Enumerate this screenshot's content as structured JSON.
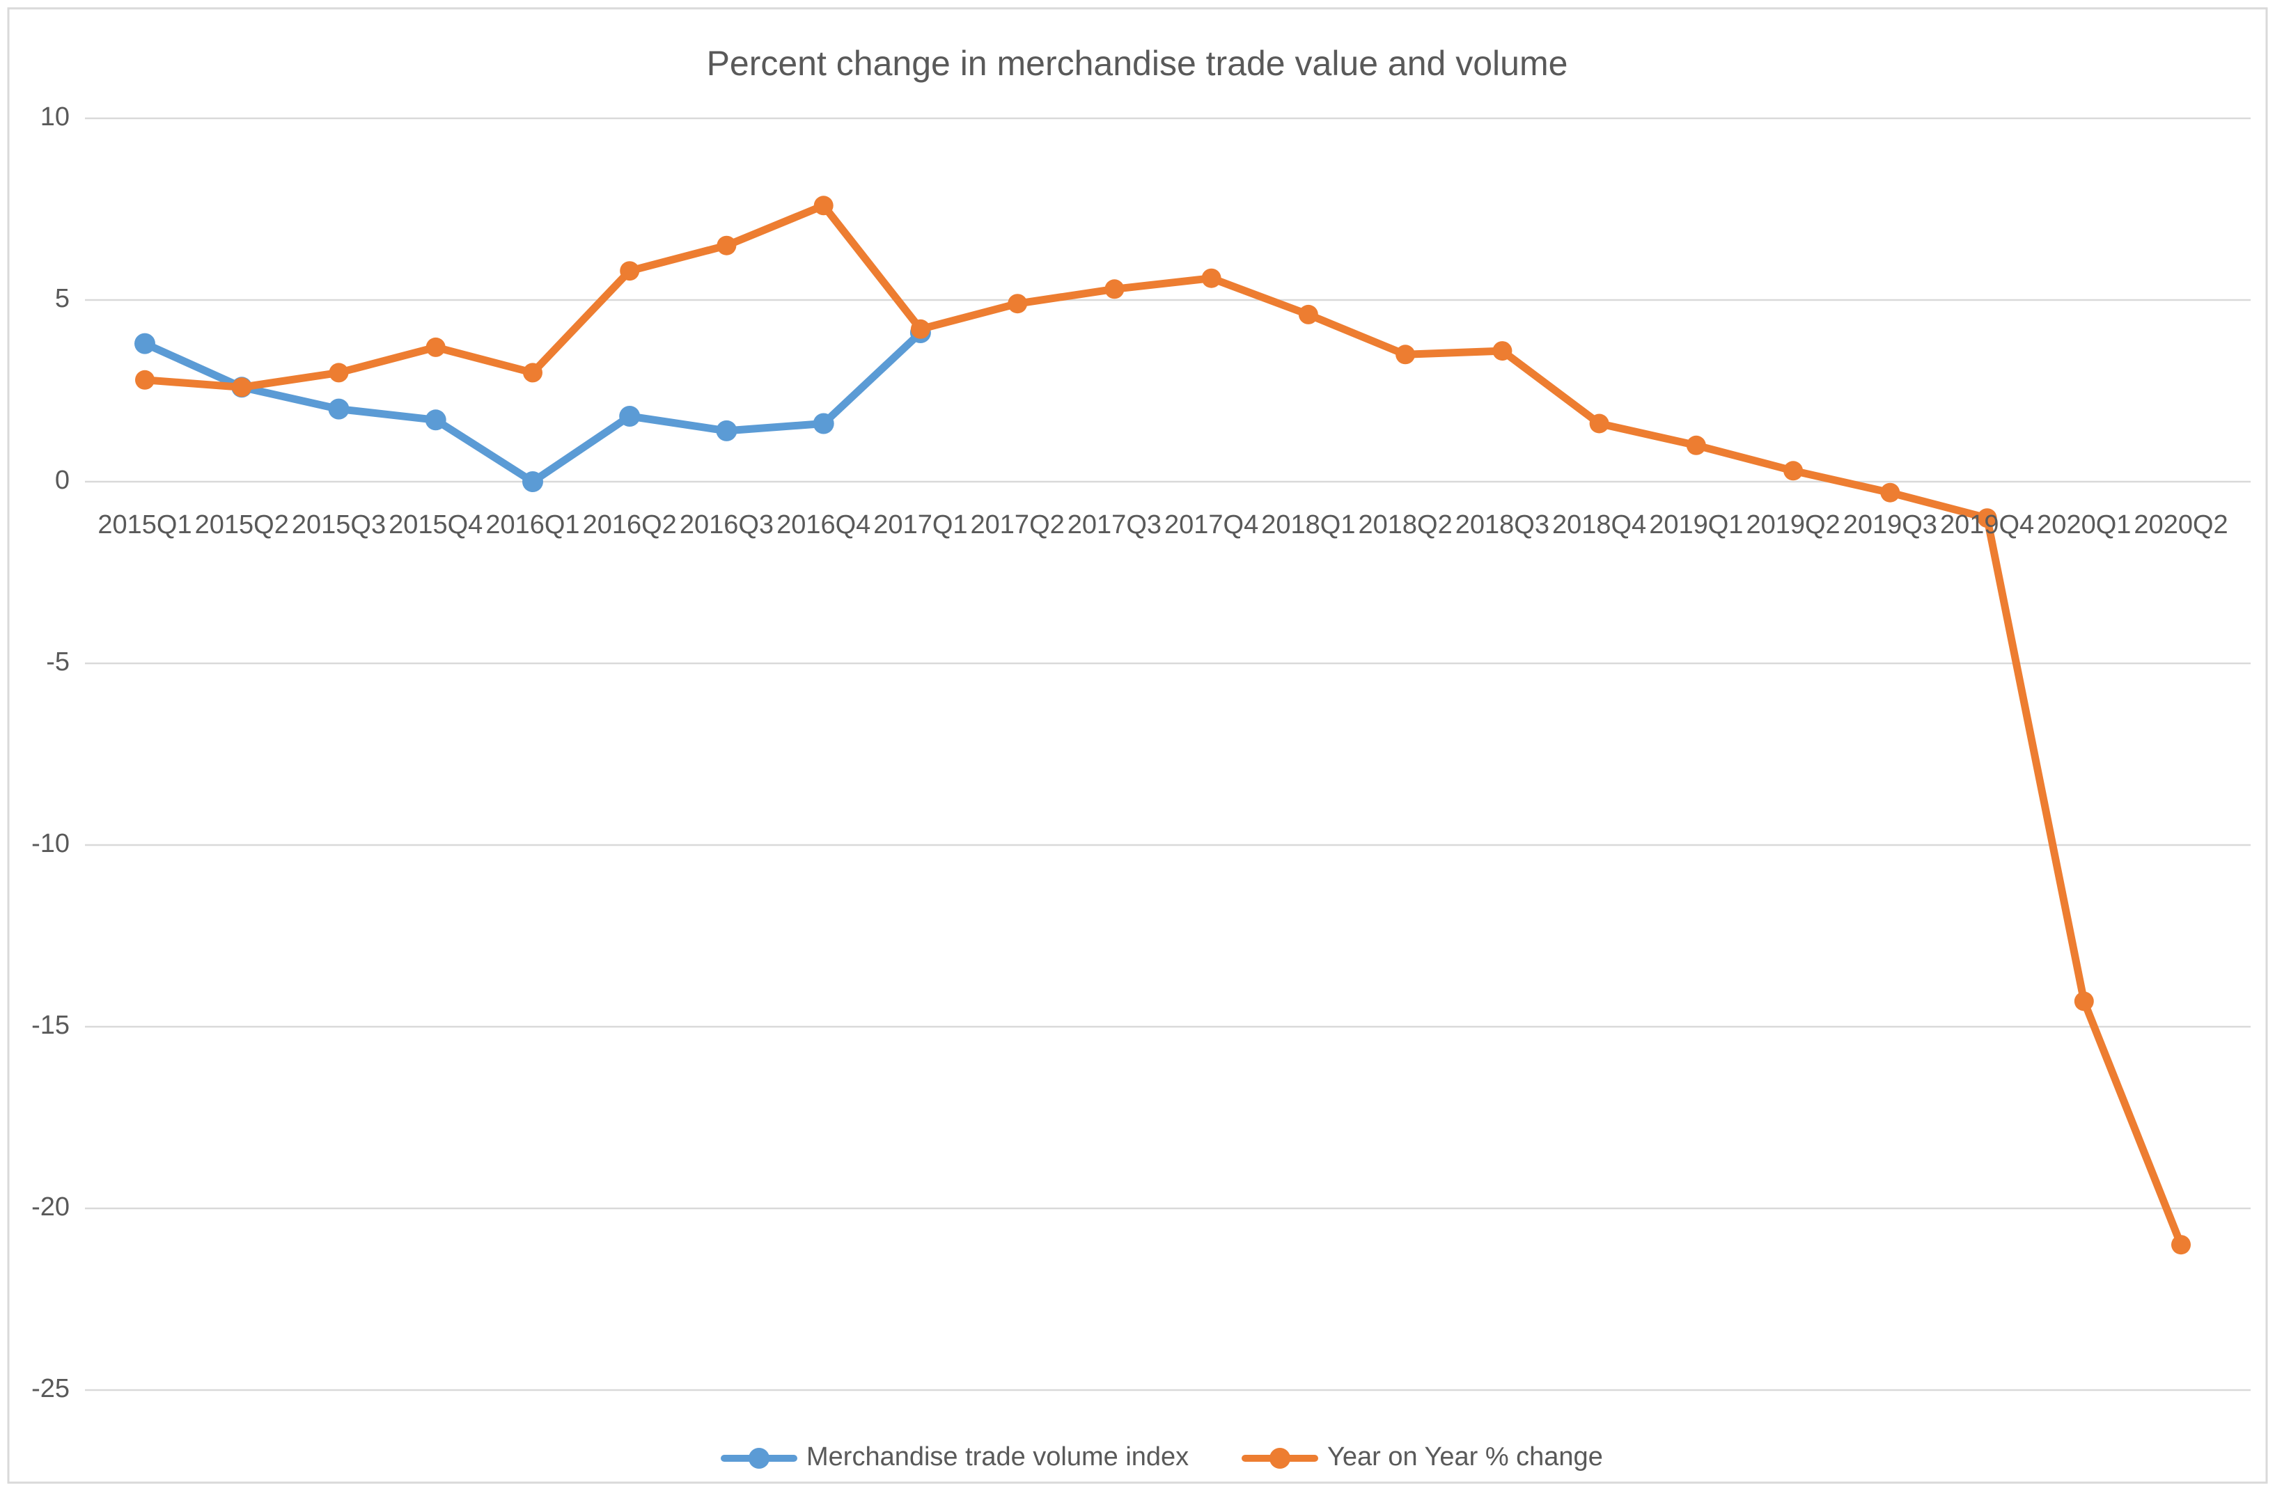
{
  "window": {
    "background": "#FFFFFF",
    "border_color": "#D9D9D9"
  },
  "chart_data": {
    "type": "line",
    "title": "Percent change in merchandise trade value and volume",
    "xlabel": "",
    "ylabel": "",
    "categories": [
      "2015Q1",
      "2015Q2",
      "2015Q3",
      "2015Q4",
      "2016Q1",
      "2016Q2",
      "2016Q3",
      "2016Q4",
      "2017Q1",
      "2017Q2",
      "2017Q3",
      "2017Q4",
      "2018Q1",
      "2018Q2",
      "2018Q3",
      "2018Q4",
      "2019Q1",
      "2019Q2",
      "2019Q3",
      "2019Q4",
      "2020Q1",
      "2020Q2"
    ],
    "series": [
      {
        "name": "Merchandise trade volume index",
        "color": "#5B9BD5",
        "marker_icon": "line-with-dot-marker-icon",
        "values": [
          3.8,
          2.6,
          2.0,
          1.7,
          0.0,
          1.8,
          1.4,
          1.6,
          4.1,
          null,
          null,
          null,
          null,
          null,
          null,
          null,
          null,
          null,
          null,
          null,
          null,
          null
        ]
      },
      {
        "name": "Year on Year % change",
        "color": "#ED7D31",
        "marker_icon": "line-with-dot-marker-icon",
        "values": [
          2.8,
          2.6,
          3.0,
          3.7,
          3.0,
          5.8,
          6.5,
          7.6,
          4.2,
          4.9,
          5.3,
          5.6,
          4.6,
          3.5,
          3.6,
          1.6,
          1.0,
          0.3,
          -0.3,
          -1.0,
          -14.3,
          -21.0
        ]
      }
    ],
    "yticks": [
      10,
      5,
      0,
      -5,
      -10,
      -15,
      -20,
      -25
    ],
    "ylim": [
      -27,
      11
    ],
    "grid": true,
    "gridline_color": "#D9D9D9",
    "text_color": "#595959",
    "legend_position": "bottom"
  }
}
